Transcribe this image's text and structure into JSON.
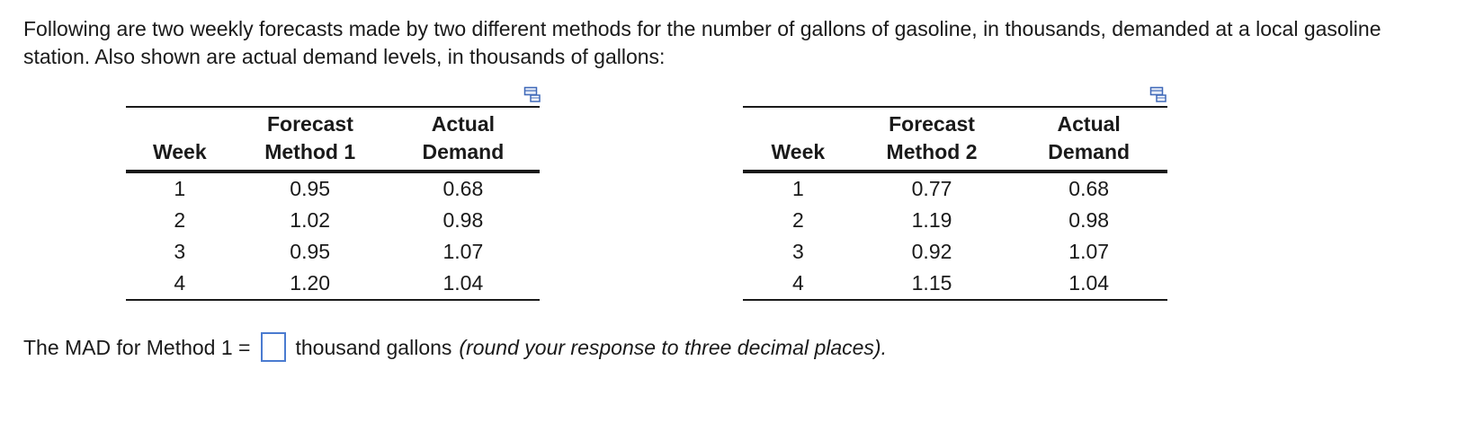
{
  "intro": "Following are two weekly forecasts made by two different methods for the number of gallons of gasoline, in thousands, demanded at a local gasoline station. Also shown are actual demand levels, in thousands of gallons:",
  "table1": {
    "headers": {
      "week": "Week",
      "forecast_top": "Forecast",
      "forecast_bottom": "Method 1",
      "actual_top": "Actual",
      "actual_bottom": "Demand"
    },
    "rows": [
      {
        "week": "1",
        "forecast": "0.95",
        "actual": "0.68"
      },
      {
        "week": "2",
        "forecast": "1.02",
        "actual": "0.98"
      },
      {
        "week": "3",
        "forecast": "0.95",
        "actual": "1.07"
      },
      {
        "week": "4",
        "forecast": "1.20",
        "actual": "1.04"
      }
    ]
  },
  "table2": {
    "headers": {
      "week": "Week",
      "forecast_top": "Forecast",
      "forecast_bottom": "Method 2",
      "actual_top": "Actual",
      "actual_bottom": "Demand"
    },
    "rows": [
      {
        "week": "1",
        "forecast": "0.77",
        "actual": "0.68"
      },
      {
        "week": "2",
        "forecast": "1.19",
        "actual": "0.98"
      },
      {
        "week": "3",
        "forecast": "0.92",
        "actual": "1.07"
      },
      {
        "week": "4",
        "forecast": "1.15",
        "actual": "1.04"
      }
    ]
  },
  "question": {
    "prefix": "The MAD for Method 1 =",
    "suffix": "thousand gallons",
    "hint": "(round your response to three decimal places)."
  },
  "icons": {
    "copy": "copy-table-icon"
  },
  "colors": {
    "accent": "#4a7bd0"
  }
}
